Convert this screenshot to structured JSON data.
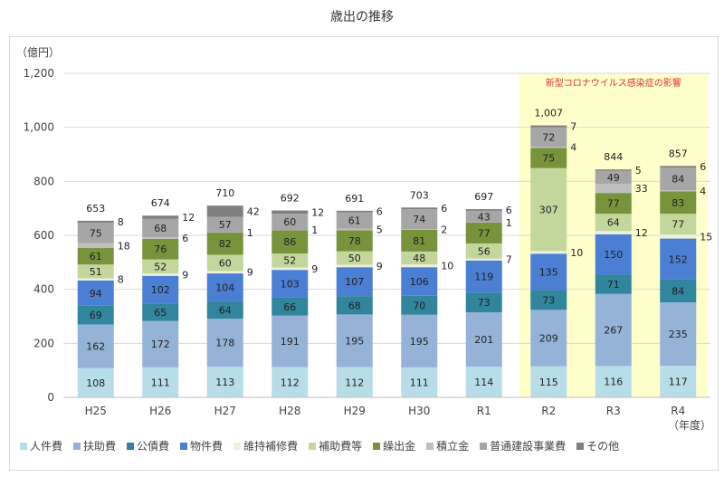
{
  "chart_data": {
    "type": "bar",
    "stacked": true,
    "title": "歳出の推移",
    "ylabel": "（億円）",
    "xlabel": "（年度）",
    "ylim": [
      0,
      1200
    ],
    "yticks": [
      0,
      200,
      400,
      600,
      800,
      1000,
      1200
    ],
    "ytick_labels": [
      "0",
      "200",
      "400",
      "600",
      "800",
      "1,000",
      "1,200"
    ],
    "grid": true,
    "legend_position": "bottom",
    "categories": [
      "H25",
      "H26",
      "H27",
      "H28",
      "H29",
      "H30",
      "R1",
      "R2",
      "R3",
      "R4"
    ],
    "totals": [
      "653",
      "674",
      "710",
      "692",
      "691",
      "703",
      "697",
      "1,007",
      "844",
      "857"
    ],
    "series": [
      {
        "name": "人件費",
        "color": "#b7dde8",
        "values": [
          108,
          111,
          113,
          112,
          112,
          111,
          114,
          115,
          116,
          117
        ]
      },
      {
        "name": "扶助費",
        "color": "#95b3d7",
        "values": [
          162,
          172,
          178,
          191,
          195,
          195,
          201,
          209,
          267,
          235
        ]
      },
      {
        "name": "公債費",
        "color": "#31859c",
        "values": [
          69,
          65,
          64,
          66,
          68,
          70,
          73,
          73,
          71,
          84
        ]
      },
      {
        "name": "物件費",
        "color": "#4a7fd4",
        "values": [
          94,
          102,
          104,
          103,
          107,
          106,
          119,
          135,
          150,
          152
        ]
      },
      {
        "name": "維持補修費",
        "color": "#ebf1de",
        "values": [
          8,
          9,
          9,
          9,
          9,
          10,
          7,
          10,
          12,
          15
        ]
      },
      {
        "name": "補助費等",
        "color": "#c3d69b",
        "values": [
          51,
          52,
          60,
          52,
          50,
          48,
          56,
          307,
          64,
          77
        ]
      },
      {
        "name": "繰出金",
        "color": "#77933c",
        "values": [
          61,
          76,
          82,
          86,
          78,
          81,
          77,
          75,
          77,
          83
        ]
      },
      {
        "name": "積立金",
        "color": "#bfbfbf",
        "values": [
          18,
          6,
          1,
          1,
          5,
          2,
          1,
          4,
          33,
          4
        ]
      },
      {
        "name": "普通建設事業費",
        "color": "#a6a6a6",
        "values": [
          75,
          68,
          57,
          60,
          61,
          74,
          43,
          72,
          49,
          84
        ]
      },
      {
        "name": "その他",
        "color": "#7f7f7f",
        "values": [
          8,
          12,
          42,
          12,
          6,
          6,
          6,
          7,
          5,
          6
        ]
      }
    ],
    "annotation": {
      "text": "新型コロナウイルス感染症の影響",
      "categories": [
        "R2",
        "R3",
        "R4"
      ],
      "fill": "#ffffcc",
      "text_color": "#e03030"
    }
  }
}
